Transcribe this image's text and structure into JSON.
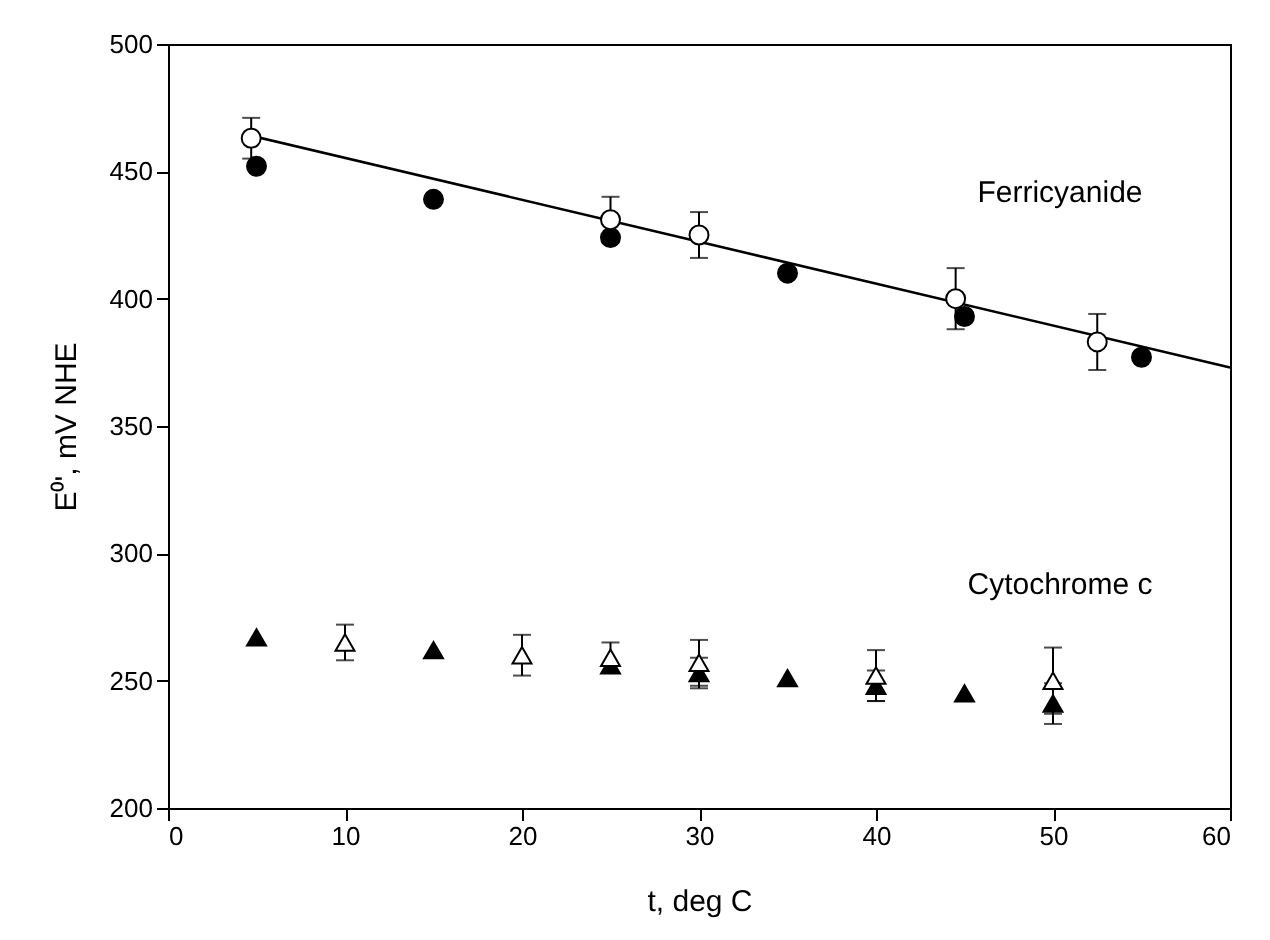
{
  "chart_data": {
    "type": "scatter",
    "xlabel": "t, deg C",
    "ylabel": "E⁰', mV NHE",
    "xlim": [
      0,
      60
    ],
    "xticks": [
      0,
      10,
      20,
      30,
      40,
      50,
      60
    ],
    "ylim": [
      200,
      500
    ],
    "yticks": [
      200,
      250,
      300,
      350,
      400,
      450,
      500
    ],
    "grid": false,
    "series": [
      {
        "marker": "circle",
        "color": "#000000",
        "x": [
          5,
          15,
          25,
          35,
          45,
          55
        ],
        "values": [
          452,
          439,
          424,
          410,
          393,
          377
        ]
      },
      {
        "type": "line",
        "marker": "none",
        "color": "#000000",
        "x": [
          4.7,
          60
        ],
        "values": [
          464,
          373
        ]
      },
      {
        "marker": "circle",
        "color": "#ffffff",
        "x": [
          4.7,
          25,
          30,
          44.5,
          52.5
        ],
        "values": [
          463,
          431,
          425,
          400,
          383
        ],
        "errors": [
          8,
          9,
          9,
          12,
          11
        ]
      },
      {
        "marker": "triangle",
        "color": "#000000",
        "x": [
          5,
          15,
          25,
          30,
          35,
          40,
          45,
          50
        ],
        "values": [
          267,
          262,
          256,
          253,
          251,
          248,
          245,
          241
        ],
        "errors": [
          null,
          null,
          null,
          6,
          null,
          6,
          null,
          8
        ]
      },
      {
        "marker": "triangle",
        "color": "#ffffff",
        "x": [
          10,
          20,
          25,
          30,
          40,
          50
        ],
        "values": [
          265,
          260,
          259,
          257,
          252,
          250
        ],
        "errors": [
          7,
          8,
          6,
          9,
          10,
          13
        ]
      }
    ],
    "annotations": [
      "Ferricyanide",
      "Cytochrome c"
    ]
  }
}
